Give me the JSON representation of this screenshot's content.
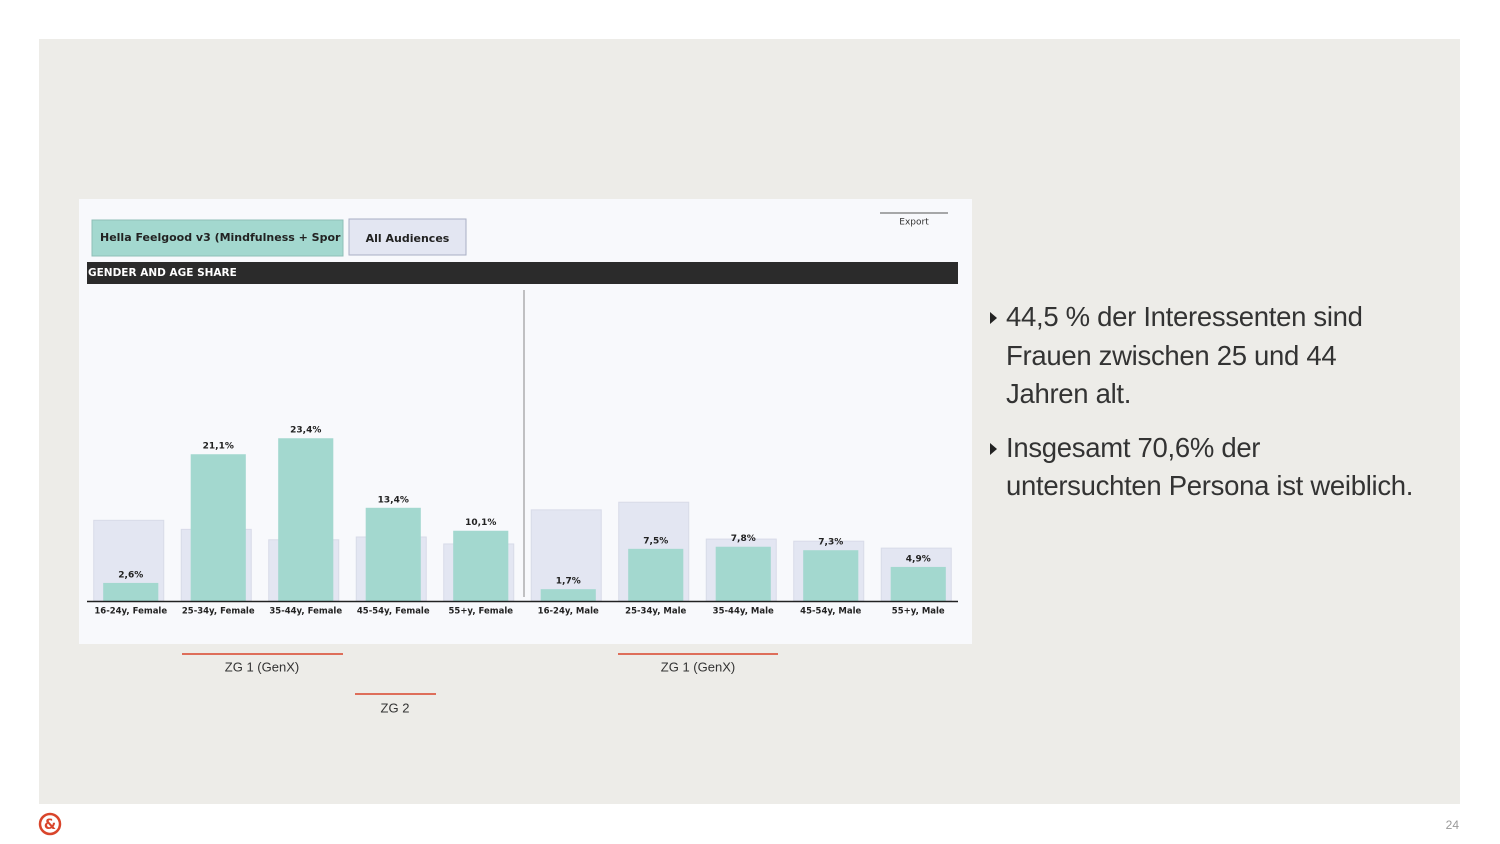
{
  "chart_data": {
    "type": "bar",
    "title": "GENDER AND AGE SHARE",
    "export": "Export",
    "categories": [
      "16-24y, Female",
      "25-34y, Female",
      "35-44y, Female",
      "45-54y, Female",
      "55+y, Female",
      "16-24y, Male",
      "25-34y, Male",
      "35-44y, Male",
      "45-54y, Male",
      "55+y, Male"
    ],
    "series": [
      {
        "name": "Hella Feelgood v3 (Mindfulness + Spor",
        "color": "#a3d8cf",
        "values": [
          2.6,
          21.1,
          23.4,
          13.4,
          10.1,
          1.7,
          7.5,
          7.8,
          7.3,
          4.9
        ],
        "value_labels": [
          "2,6%",
          "21,1%",
          "23,4%",
          "13,4%",
          "10,1%",
          "1,7%",
          "7,5%",
          "7,8%",
          "7,3%",
          "4,9%"
        ]
      },
      {
        "name": "All Audiences",
        "color": "#e3e6f2",
        "values": [
          11.6,
          10.3,
          8.8,
          9.2,
          8.2,
          13.1,
          14.2,
          8.9,
          8.6,
          7.6
        ]
      }
    ],
    "ylim": [
      0,
      45
    ]
  },
  "annotations": [
    "ZG 1 (GenX)",
    "ZG 1 (GenX)",
    "ZG 2"
  ],
  "bullets": [
    "44,5 % der Interessenten sind Frauen zwischen 25 und 44 Jahren alt.",
    "Insgesamt 70,6% der untersuchten Persona ist weiblich."
  ],
  "logo": "&",
  "page_number": "24"
}
